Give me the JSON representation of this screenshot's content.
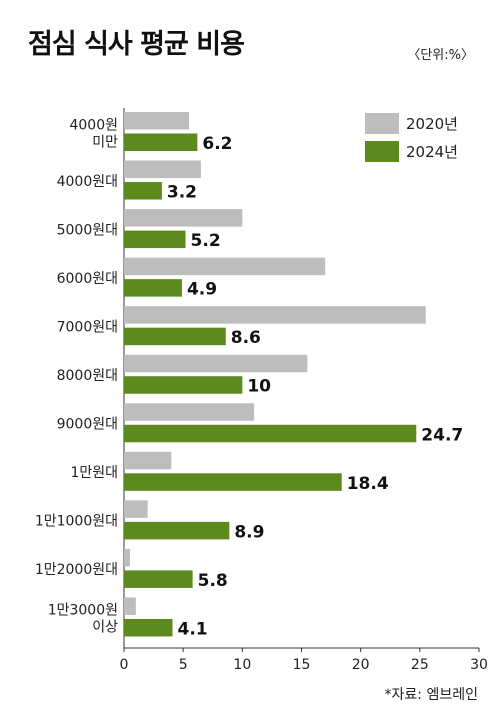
{
  "header": {
    "title": "점심 식사 평균 비용",
    "unit": "〈단위:%〉"
  },
  "footer": {
    "source": "*자료: 엠브레인"
  },
  "colors": {
    "series_2020": "#bdbdbd",
    "series_2024": "#5c8a1e"
  },
  "chart_data": {
    "type": "bar",
    "orientation": "horizontal",
    "categories": [
      [
        "4000원",
        "미만"
      ],
      [
        "4000원대"
      ],
      [
        "5000원대"
      ],
      [
        "6000원대"
      ],
      [
        "7000원대"
      ],
      [
        "8000원대"
      ],
      [
        "9000원대"
      ],
      [
        "1만원대"
      ],
      [
        "1만1000원대"
      ],
      [
        "1만2000원대"
      ],
      [
        "1만3000원",
        "이상"
      ]
    ],
    "series": [
      {
        "name": "2020년",
        "values": [
          5.5,
          6.5,
          10,
          17,
          25.5,
          15.5,
          11,
          4,
          2,
          0.5,
          1
        ]
      },
      {
        "name": "2024년",
        "values": [
          6.2,
          3.2,
          5.2,
          4.9,
          8.6,
          10,
          24.7,
          18.4,
          8.9,
          5.8,
          4.1
        ],
        "value_labels": [
          "6.2",
          "3.2",
          "5.2",
          "4.9",
          "8.6",
          "10",
          "24.7",
          "18.4",
          "8.9",
          "5.8",
          "4.1"
        ]
      }
    ],
    "xlim": [
      0,
      30
    ],
    "xticks": [
      "0",
      "5",
      "10",
      "15",
      "20",
      "25",
      "30"
    ],
    "legend_position": "top-right",
    "grid": false
  }
}
